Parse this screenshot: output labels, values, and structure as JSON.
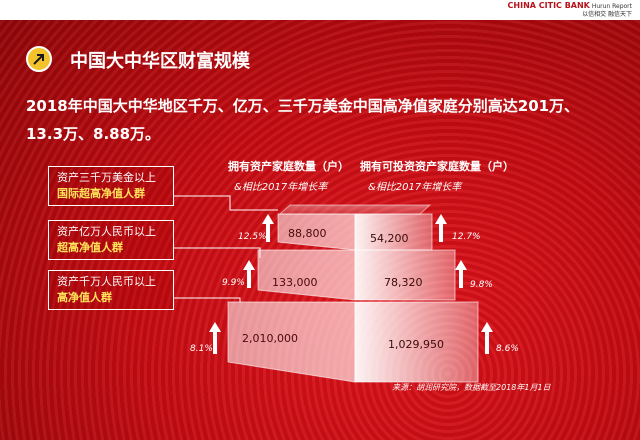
{
  "header": {
    "brand_name": "CHINA CITIC BANK",
    "brand_slogan": "以信相交 融信天下",
    "brand_mark": "Hurun Report"
  },
  "section": {
    "icon": "arrow-circle-icon",
    "title": "中国大中华区财富规模"
  },
  "headline": "2018年中国大中华地区千万、亿万、三千万美金中国高净值家庭分别高达201万、13.3万、8.88万。",
  "tiers": [
    {
      "line1": "资产三千万美金以上",
      "line2": "国际超高净值人群"
    },
    {
      "line1": "资产亿万人民币以上",
      "line2": "超高净值人群"
    },
    {
      "line1": "资产千万人民币以上",
      "line2": "高净值人群"
    }
  ],
  "columns": {
    "left": {
      "title": "拥有资产家庭数量（户）",
      "subtitle": "&相比2017年增长率"
    },
    "right": {
      "title": "拥有可投资资产家庭数量（户）",
      "subtitle": "&相比2017年增长率"
    }
  },
  "pyramid": {
    "left": [
      {
        "value": "88,800",
        "growth": "12.5%"
      },
      {
        "value": "133,000",
        "growth": "9.9%"
      },
      {
        "value": "2,010,000",
        "growth": "8.1%"
      }
    ],
    "right": [
      {
        "value": "54,200",
        "growth": "12.7%"
      },
      {
        "value": "78,320",
        "growth": "9.8%"
      },
      {
        "value": "1,029,950",
        "growth": "8.6%"
      }
    ]
  },
  "source": "来源：胡润研究院，数据截至2018年1月1日",
  "colors": {
    "accent": "#f4c22b",
    "highlight": "#ffe45a",
    "background": "#c60c12"
  }
}
